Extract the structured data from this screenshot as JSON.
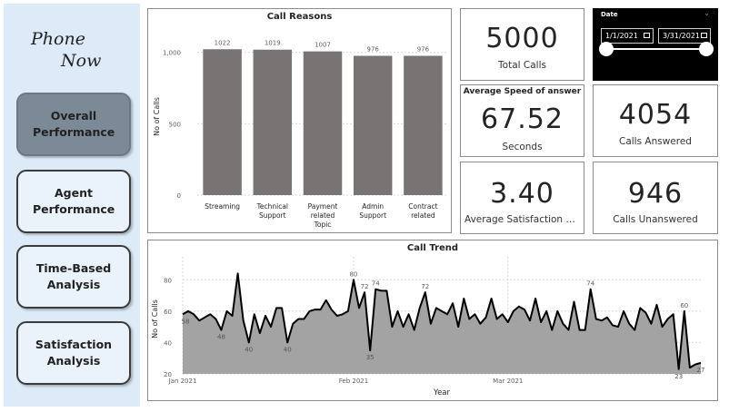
{
  "logo": {
    "line1": "Phone",
    "line2": "Now"
  },
  "nav": [
    {
      "label": "Overall Performance",
      "active": true
    },
    {
      "label": "Agent Performance",
      "active": false
    },
    {
      "label": "Time-Based Analysis",
      "active": false
    },
    {
      "label": "Satisfaction Analysis",
      "active": false
    }
  ],
  "kpis": {
    "total_calls": {
      "value": "5000",
      "label": "Total Calls"
    },
    "avg_speed": {
      "title": "Average Speed of answer",
      "value": "67.52",
      "label": "Seconds"
    },
    "calls_answered": {
      "value": "4054",
      "label": "Calls Answered"
    },
    "avg_satisfaction": {
      "value": "3.40",
      "label": "Average Satisfaction R..."
    },
    "calls_unanswered": {
      "value": "946",
      "label": "Calls Unanswered"
    }
  },
  "date_slicer": {
    "title": "Date",
    "start": "1/1/2021",
    "end": "3/31/2021",
    "start_fraction": 0,
    "end_fraction": 1
  },
  "colors": {
    "sidebar_bg": "#dcebf7",
    "nav_active": "#7b8a96",
    "bar": "#787474",
    "area": "#a3a3a3",
    "line": "#000000",
    "slicer_bg": "#000000"
  },
  "chart_data": [
    {
      "type": "bar",
      "title": "Call Reasons",
      "ylabel": "No of Calls",
      "xlabel": "",
      "categories": [
        [
          "Streaming"
        ],
        [
          "Technical",
          "Support"
        ],
        [
          "Payment",
          "related",
          "Topic"
        ],
        [
          "Admin",
          "Support"
        ],
        [
          "Contract",
          "related"
        ]
      ],
      "values": [
        1022,
        1019,
        1007,
        976,
        976
      ],
      "data_labels": [
        "1022",
        "1019",
        "1007",
        "976",
        "976"
      ],
      "y_ticks": [
        0,
        500,
        1000
      ],
      "y_tick_labels": [
        "0",
        "500",
        "1,000"
      ],
      "ylim": [
        0,
        1100
      ],
      "grid": true
    },
    {
      "type": "area",
      "title": "Call Trend",
      "xlabel": "Year",
      "ylabel": "No of Calls",
      "x_start": "2021-01-01",
      "x_end": "2021-03-31",
      "x_tick_labels": [
        "Jan 2021",
        "Feb 2021",
        "Mar 2021"
      ],
      "x_tick_days": [
        0,
        31,
        59
      ],
      "y_ticks": [
        20,
        40,
        60,
        80
      ],
      "y_tick_labels": [
        "20",
        "40",
        "60",
        "80"
      ],
      "ylim": [
        20,
        90
      ],
      "grid": true,
      "values": [
        58,
        60,
        58,
        54,
        56,
        58,
        55,
        48,
        60,
        57,
        84,
        54,
        40,
        58,
        46,
        57,
        50,
        62,
        62,
        40,
        52,
        55,
        55,
        60,
        61,
        61,
        67,
        61,
        57,
        58,
        60,
        80,
        62,
        72,
        35,
        74,
        73,
        73,
        50,
        60,
        50,
        58,
        48,
        62,
        72,
        52,
        62,
        60,
        58,
        65,
        50,
        68,
        55,
        58,
        52,
        56,
        68,
        55,
        58,
        53,
        60,
        63,
        61,
        54,
        68,
        53,
        60,
        48,
        60,
        52,
        48,
        66,
        48,
        48,
        74,
        55,
        54,
        56,
        51,
        50,
        60,
        52,
        48,
        62,
        59,
        52,
        64,
        50,
        55,
        58,
        23,
        60,
        24,
        26,
        27
      ],
      "annotations": [
        {
          "day": 0,
          "label": "58"
        },
        {
          "day": 7,
          "label": "48"
        },
        {
          "day": 12,
          "label": "40"
        },
        {
          "day": 19,
          "label": "40"
        },
        {
          "day": 31,
          "label": "80"
        },
        {
          "day": 33,
          "label": "72"
        },
        {
          "day": 34,
          "label": "35"
        },
        {
          "day": 35,
          "label": "74"
        },
        {
          "day": 44,
          "label": "72"
        },
        {
          "day": 74,
          "label": "74"
        },
        {
          "day": 90,
          "label": "23"
        },
        {
          "day": 91,
          "label": "60"
        },
        {
          "day": 94,
          "label": "27"
        }
      ]
    }
  ]
}
